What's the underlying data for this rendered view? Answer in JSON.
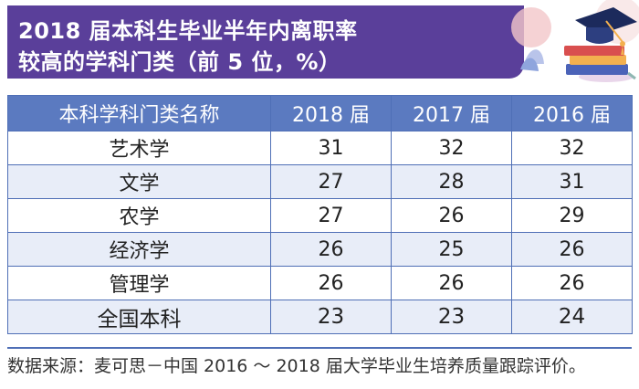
{
  "title": {
    "line1": "2018 届本科生毕业半年内离职率",
    "line2": "较高的学科门类（前 5 位，%）"
  },
  "icons": {
    "decoration": "graduation-cap-books-icon"
  },
  "colors": {
    "title_bg": "#5a3f9a",
    "header_bg": "#5b7ac0",
    "row_alt": "#e8edf8",
    "border": "#4f6fb6"
  },
  "table": {
    "headers": [
      "本科学科门类名称",
      "2018 届",
      "2017 届",
      "2016 届"
    ],
    "rows": [
      {
        "name": "艺术学",
        "y2018": "31",
        "y2017": "32",
        "y2016": "32"
      },
      {
        "name": "文学",
        "y2018": "27",
        "y2017": "28",
        "y2016": "31"
      },
      {
        "name": "农学",
        "y2018": "27",
        "y2017": "26",
        "y2016": "29"
      },
      {
        "name": "经济学",
        "y2018": "26",
        "y2017": "25",
        "y2016": "26"
      },
      {
        "name": "管理学",
        "y2018": "26",
        "y2017": "26",
        "y2016": "26"
      },
      {
        "name": "全国本科",
        "y2018": "23",
        "y2017": "23",
        "y2016": "24"
      }
    ]
  },
  "source": "数据来源：麦可思－中国 2016 ～ 2018 届大学毕业生培养质量跟踪评价。"
}
